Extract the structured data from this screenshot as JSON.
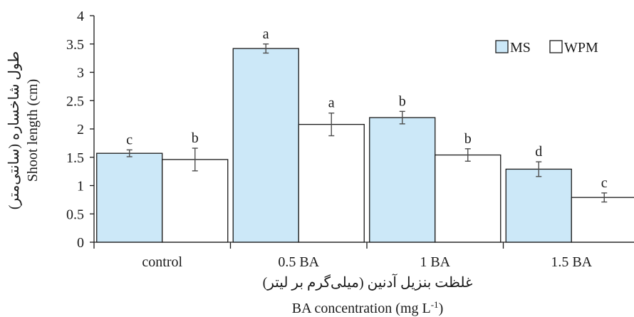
{
  "chart_data": {
    "type": "bar",
    "categories": [
      "control",
      "0.5 BA",
      "1 BA",
      "1.5 BA"
    ],
    "series": [
      {
        "name": "MS",
        "color": "#cce8f8",
        "values": [
          1.57,
          3.42,
          2.2,
          1.29
        ],
        "errors": [
          0.06,
          0.08,
          0.11,
          0.13
        ],
        "letters": [
          "c",
          "a",
          "b",
          "d"
        ]
      },
      {
        "name": "WPM",
        "color": "#ffffff",
        "values": [
          1.46,
          2.08,
          1.54,
          0.79
        ],
        "errors": [
          0.2,
          0.2,
          0.11,
          0.08
        ],
        "letters": [
          "b",
          "a",
          "b",
          "c"
        ]
      }
    ],
    "ylim": [
      0,
      4
    ],
    "yticks": [
      "0",
      "0.5",
      "1",
      "1.5",
      "2",
      "2.5",
      "3",
      "3.5",
      "4"
    ],
    "ylabel_fa": "طول شاخساره (سانتی‌متر)",
    "ylabel": "Shoot length (cm)",
    "xlabel_fa": "غلظت بنزیل آدنین (میلی‌گرم بر لیتر)",
    "xlabel_main": "BA concentration (mg L",
    "xlabel_sup": "-1",
    "xlabel_end": ")",
    "legend_position": "top-right",
    "grid": false
  }
}
